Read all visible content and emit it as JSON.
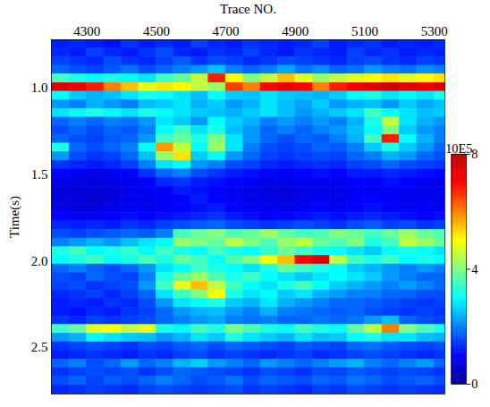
{
  "chart_data": {
    "type": "heatmap",
    "x_label": "Trace NO.",
    "y_label": "Time(s)",
    "xlim": [
      4198,
      5330
    ],
    "ylim": [
      0.72,
      2.77
    ],
    "xticks": [
      4300,
      4500,
      4700,
      4900,
      5100,
      5300
    ],
    "yticks": [
      {
        "value": 1,
        "label": "1.0"
      },
      1.5,
      {
        "value": 2,
        "label": "2.0"
      },
      2.5
    ],
    "cells": {
      "x": [
        4225,
        4275,
        4325,
        4375,
        4425,
        4475,
        4525,
        4575,
        4625,
        4675,
        4725,
        4775,
        4825,
        4875,
        4925,
        4975,
        5025,
        5075,
        5125,
        5175,
        5225,
        5275,
        5325
      ],
      "y": [
        0.745,
        0.795,
        0.845,
        0.895,
        0.945,
        0.995,
        1.045,
        1.095,
        1.145,
        1.195,
        1.245,
        1.295,
        1.345,
        1.395,
        1.445,
        1.495,
        1.545,
        1.595,
        1.645,
        1.695,
        1.745,
        1.795,
        1.845,
        1.895,
        1.945,
        1.995,
        2.045,
        2.095,
        2.145,
        2.195,
        2.245,
        2.295,
        2.345,
        2.395,
        2.445,
        2.495,
        2.545,
        2.595,
        2.645,
        2.695,
        2.745
      ],
      "values": [
        [
          1.2,
          1.3,
          1.2,
          1.1,
          1.4,
          1.2,
          1.3,
          1.2,
          1.5,
          1.3,
          1.2,
          1.4,
          1.3,
          1.2,
          1.3,
          1.5,
          1.2,
          1.3,
          1.4,
          1.2,
          1.3,
          1.2,
          1.3
        ],
        [
          1.3,
          1.2,
          1.5,
          1.3,
          1.2,
          1.4,
          1.6,
          1.3,
          1.2,
          1.4,
          1.3,
          1.5,
          1.3,
          1.2,
          1.4,
          1.3,
          1.2,
          1.5,
          1.3,
          1.4,
          1.2,
          1.3,
          1.2
        ],
        [
          1.5,
          1.4,
          1.3,
          1.6,
          1.4,
          1.3,
          1.5,
          1.7,
          1.4,
          1.6,
          1.5,
          1.3,
          1.4,
          1.6,
          1.5,
          1.4,
          1.3,
          1.5,
          1.6,
          1.4,
          1.3,
          1.5,
          1.4
        ],
        [
          1.8,
          1.6,
          1.5,
          1.7,
          1.9,
          1.6,
          1.8,
          2.0,
          2.2,
          2.5,
          2.0,
          1.8,
          2.0,
          2.3,
          1.9,
          2.1,
          1.8,
          1.9,
          2.2,
          2.0,
          1.9,
          2.1,
          2.0
        ],
        [
          3.5,
          3.2,
          3.0,
          3.2,
          3.0,
          2.8,
          3.5,
          3.8,
          4.5,
          6.8,
          5.0,
          4.0,
          4.5,
          5.5,
          4.8,
          4.2,
          4.5,
          4.8,
          5.0,
          5.2,
          4.8,
          5.0,
          5.2
        ],
        [
          7.6,
          7.2,
          6.8,
          6.0,
          5.5,
          4.8,
          5.2,
          5.0,
          4.5,
          4.2,
          6.5,
          6.0,
          7.0,
          7.4,
          7.0,
          6.0,
          6.8,
          7.2,
          7.5,
          7.8,
          7.5,
          7.2,
          7.6
        ],
        [
          3.0,
          2.6,
          2.4,
          2.5,
          2.8,
          3.2,
          3.0,
          2.8,
          2.5,
          3.0,
          2.6,
          2.5,
          2.8,
          2.6,
          2.5,
          2.4,
          2.6,
          3.0,
          3.2,
          2.8,
          3.0,
          2.8,
          3.2
        ],
        [
          2.2,
          2.0,
          2.4,
          2.2,
          2.0,
          2.5,
          2.6,
          2.8,
          2.4,
          2.6,
          2.2,
          2.4,
          2.8,
          2.5,
          2.3,
          2.6,
          2.2,
          2.4,
          2.5,
          2.2,
          2.6,
          2.3,
          2.5
        ],
        [
          2.8,
          3.0,
          3.2,
          3.0,
          2.8,
          3.2,
          3.0,
          2.8,
          2.6,
          2.5,
          2.4,
          2.6,
          2.8,
          2.5,
          2.2,
          2.4,
          2.6,
          2.8,
          3.5,
          3.0,
          2.8,
          2.5,
          2.6
        ],
        [
          1.8,
          2.0,
          1.8,
          2.0,
          1.9,
          2.2,
          2.8,
          2.6,
          2.2,
          3.0,
          2.6,
          2.4,
          2.0,
          2.2,
          2.0,
          2.2,
          2.0,
          2.4,
          3.2,
          4.5,
          2.8,
          2.4,
          2.2
        ],
        [
          1.6,
          1.8,
          1.6,
          1.8,
          1.7,
          2.0,
          3.0,
          3.5,
          2.8,
          3.2,
          2.5,
          2.2,
          1.8,
          2.0,
          1.8,
          2.0,
          2.2,
          2.5,
          3.0,
          4.0,
          2.6,
          2.2,
          2.0
        ],
        [
          1.8,
          1.6,
          1.5,
          1.7,
          1.8,
          2.2,
          3.5,
          3.8,
          3.2,
          4.0,
          2.8,
          2.2,
          1.8,
          1.6,
          1.8,
          1.7,
          2.0,
          2.4,
          3.5,
          6.8,
          3.0,
          2.4,
          2.0
        ],
        [
          3.2,
          1.8,
          1.6,
          1.8,
          2.0,
          3.0,
          5.8,
          4.5,
          3.0,
          4.2,
          2.8,
          2.0,
          1.6,
          1.5,
          1.6,
          1.8,
          1.7,
          2.0,
          2.6,
          3.2,
          2.6,
          2.2,
          1.8
        ],
        [
          2.2,
          1.6,
          1.4,
          1.5,
          1.8,
          2.5,
          4.2,
          5.2,
          2.6,
          3.0,
          2.2,
          1.8,
          1.5,
          1.4,
          1.5,
          1.6,
          1.5,
          1.8,
          2.0,
          2.4,
          2.2,
          1.8,
          1.6
        ],
        [
          1.4,
          1.3,
          1.2,
          1.3,
          1.5,
          2.0,
          2.8,
          3.0,
          2.2,
          2.0,
          1.6,
          1.5,
          1.3,
          1.2,
          1.3,
          1.4,
          1.3,
          1.5,
          1.6,
          1.8,
          1.6,
          1.5,
          1.4
        ],
        [
          1.0,
          0.9,
          0.8,
          0.9,
          1.0,
          1.4,
          1.8,
          2.0,
          1.6,
          1.4,
          1.2,
          1.1,
          1.0,
          0.9,
          1.0,
          1.1,
          1.0,
          1.2,
          1.2,
          1.3,
          1.2,
          1.1,
          1.0
        ],
        [
          0.8,
          0.7,
          0.7,
          0.8,
          0.8,
          1.0,
          1.3,
          1.4,
          1.2,
          1.1,
          1.0,
          0.9,
          0.8,
          0.8,
          0.9,
          0.8,
          0.9,
          1.0,
          1.0,
          1.1,
          1.0,
          0.9,
          0.8
        ],
        [
          0.7,
          0.6,
          0.7,
          0.7,
          0.8,
          0.9,
          1.0,
          1.2,
          1.1,
          1.0,
          0.9,
          0.8,
          0.7,
          0.7,
          0.8,
          0.8,
          0.8,
          0.9,
          0.9,
          1.0,
          0.9,
          0.8,
          0.8
        ],
        [
          0.7,
          0.7,
          0.6,
          0.7,
          0.8,
          0.8,
          0.9,
          1.0,
          1.2,
          1.0,
          0.9,
          0.8,
          0.8,
          0.7,
          0.8,
          0.9,
          0.8,
          0.9,
          1.0,
          0.9,
          0.8,
          0.9,
          0.8
        ],
        [
          0.8,
          0.7,
          0.7,
          0.8,
          0.9,
          0.8,
          0.9,
          1.0,
          1.1,
          1.2,
          1.0,
          0.9,
          0.9,
          0.8,
          0.9,
          1.0,
          0.9,
          1.0,
          1.1,
          1.0,
          0.9,
          0.9,
          0.9
        ],
        [
          1.0,
          0.9,
          0.9,
          1.0,
          1.1,
          1.0,
          1.1,
          1.2,
          1.3,
          1.4,
          1.2,
          1.1,
          1.0,
          1.0,
          1.1,
          1.2,
          1.1,
          1.2,
          1.3,
          1.2,
          1.1,
          1.0,
          1.1
        ],
        [
          1.3,
          1.2,
          1.3,
          1.2,
          1.4,
          1.3,
          1.5,
          1.6,
          1.7,
          1.8,
          1.6,
          1.5,
          1.4,
          1.5,
          1.6,
          1.5,
          1.4,
          1.6,
          1.7,
          1.5,
          1.6,
          1.4,
          1.5
        ],
        [
          1.6,
          1.5,
          1.6,
          1.7,
          1.8,
          1.7,
          2.0,
          3.5,
          3.8,
          4.0,
          3.6,
          3.8,
          4.2,
          3.8,
          3.5,
          3.6,
          4.0,
          3.8,
          3.5,
          3.8,
          4.2,
          3.8,
          3.6
        ],
        [
          2.0,
          2.2,
          2.4,
          2.2,
          2.5,
          2.8,
          3.0,
          4.2,
          4.0,
          3.8,
          4.5,
          4.0,
          3.6,
          4.2,
          4.5,
          3.8,
          3.6,
          4.0,
          3.2,
          3.5,
          4.5,
          4.2,
          3.8
        ],
        [
          3.2,
          3.5,
          3.0,
          3.2,
          3.4,
          3.0,
          3.5,
          3.2,
          3.0,
          3.5,
          3.2,
          3.0,
          3.4,
          3.8,
          3.5,
          3.2,
          3.0,
          2.8,
          2.6,
          3.0,
          3.2,
          3.0,
          2.8
        ],
        [
          3.0,
          3.2,
          3.5,
          3.0,
          3.2,
          3.6,
          3.2,
          3.8,
          3.5,
          3.0,
          3.6,
          4.0,
          5.0,
          5.5,
          7.0,
          7.6,
          4.5,
          3.5,
          3.2,
          3.5,
          3.0,
          3.2,
          3.0
        ],
        [
          1.8,
          2.0,
          1.8,
          1.6,
          1.8,
          2.2,
          2.8,
          3.0,
          3.5,
          3.2,
          3.0,
          2.8,
          3.2,
          3.8,
          3.5,
          3.2,
          3.0,
          2.6,
          2.4,
          2.2,
          2.0,
          2.2,
          2.0
        ],
        [
          1.6,
          1.5,
          1.8,
          1.6,
          1.5,
          2.0,
          3.2,
          3.8,
          4.2,
          3.6,
          3.2,
          3.5,
          3.0,
          2.8,
          2.6,
          2.8,
          3.0,
          2.8,
          2.6,
          2.2,
          2.0,
          1.8,
          1.8
        ],
        [
          1.5,
          1.6,
          1.4,
          1.5,
          1.6,
          2.2,
          3.5,
          4.8,
          5.5,
          4.5,
          3.5,
          3.0,
          2.8,
          3.2,
          3.5,
          3.0,
          2.6,
          2.4,
          2.2,
          2.0,
          2.2,
          2.0,
          1.8
        ],
        [
          1.3,
          1.4,
          1.5,
          1.3,
          1.5,
          1.8,
          2.8,
          3.5,
          4.0,
          5.0,
          3.2,
          2.8,
          3.0,
          2.6,
          2.8,
          2.4,
          2.2,
          2.0,
          2.0,
          1.8,
          1.8,
          1.6,
          1.6
        ],
        [
          1.2,
          1.3,
          1.2,
          1.4,
          1.3,
          1.6,
          2.2,
          2.8,
          3.0,
          3.2,
          2.6,
          2.4,
          2.8,
          2.4,
          2.2,
          2.0,
          1.8,
          1.8,
          1.7,
          1.6,
          1.5,
          1.4,
          1.5
        ],
        [
          1.2,
          1.1,
          1.3,
          1.2,
          1.4,
          1.5,
          1.8,
          2.2,
          2.4,
          2.5,
          2.2,
          2.0,
          2.4,
          2.0,
          1.9,
          1.8,
          1.7,
          1.8,
          1.6,
          1.5,
          1.4,
          1.5,
          1.4
        ],
        [
          1.4,
          1.3,
          1.5,
          1.4,
          1.5,
          1.6,
          1.8,
          2.0,
          2.2,
          2.3,
          2.0,
          1.9,
          2.0,
          1.8,
          1.8,
          1.9,
          1.8,
          1.9,
          2.2,
          2.5,
          1.8,
          1.6,
          1.5
        ],
        [
          3.5,
          3.8,
          4.8,
          5.0,
          4.5,
          4.8,
          3.2,
          3.0,
          3.5,
          3.2,
          4.0,
          3.6,
          3.2,
          3.0,
          3.5,
          3.2,
          3.0,
          3.8,
          4.5,
          6.0,
          4.0,
          3.6,
          3.2
        ],
        [
          2.2,
          2.4,
          3.0,
          2.8,
          2.6,
          2.5,
          2.2,
          2.4,
          2.8,
          2.6,
          3.2,
          2.8,
          2.6,
          2.4,
          2.8,
          2.5,
          2.6,
          3.0,
          3.2,
          2.8,
          2.8,
          2.5,
          2.4
        ],
        [
          1.4,
          1.5,
          1.6,
          1.5,
          1.4,
          1.6,
          1.5,
          1.7,
          1.8,
          1.6,
          1.8,
          1.7,
          1.6,
          1.5,
          1.7,
          1.6,
          1.5,
          1.8,
          1.9,
          1.7,
          1.6,
          1.5,
          1.6
        ],
        [
          1.2,
          1.3,
          1.4,
          1.3,
          1.2,
          1.4,
          1.3,
          1.5,
          1.6,
          1.4,
          1.5,
          1.4,
          1.3,
          1.4,
          1.5,
          1.3,
          1.4,
          1.5,
          1.6,
          1.5,
          1.4,
          1.3,
          1.4
        ],
        [
          1.8,
          2.0,
          1.6,
          1.8,
          2.2,
          1.8,
          2.0,
          2.4,
          2.6,
          2.2,
          2.0,
          1.8,
          2.2,
          2.0,
          1.8,
          2.0,
          2.2,
          2.4,
          2.0,
          1.8,
          2.0,
          2.2,
          1.8
        ],
        [
          1.4,
          1.5,
          1.6,
          1.5,
          1.6,
          1.4,
          1.6,
          1.8,
          1.7,
          1.6,
          1.5,
          1.4,
          1.6,
          1.5,
          1.4,
          1.6,
          1.5,
          1.7,
          1.6,
          1.5,
          1.6,
          1.5,
          1.4
        ],
        [
          1.6,
          1.8,
          1.5,
          1.7,
          1.6,
          1.8,
          2.0,
          1.8,
          1.6,
          1.7,
          1.9,
          1.6,
          1.8,
          1.7,
          1.6,
          1.8,
          1.7,
          1.9,
          1.8,
          1.6,
          1.7,
          1.8,
          1.6
        ],
        [
          1.3,
          1.4,
          1.5,
          1.4,
          1.3,
          1.5,
          1.6,
          1.5,
          1.4,
          1.5,
          1.6,
          1.4,
          1.5,
          1.4,
          1.3,
          1.5,
          1.4,
          1.6,
          1.5,
          1.4,
          1.5,
          1.4,
          1.3
        ]
      ]
    },
    "colorbar": {
      "label": "10E5",
      "range": [
        0,
        8
      ],
      "ticks": [
        0,
        4,
        8
      ]
    }
  }
}
